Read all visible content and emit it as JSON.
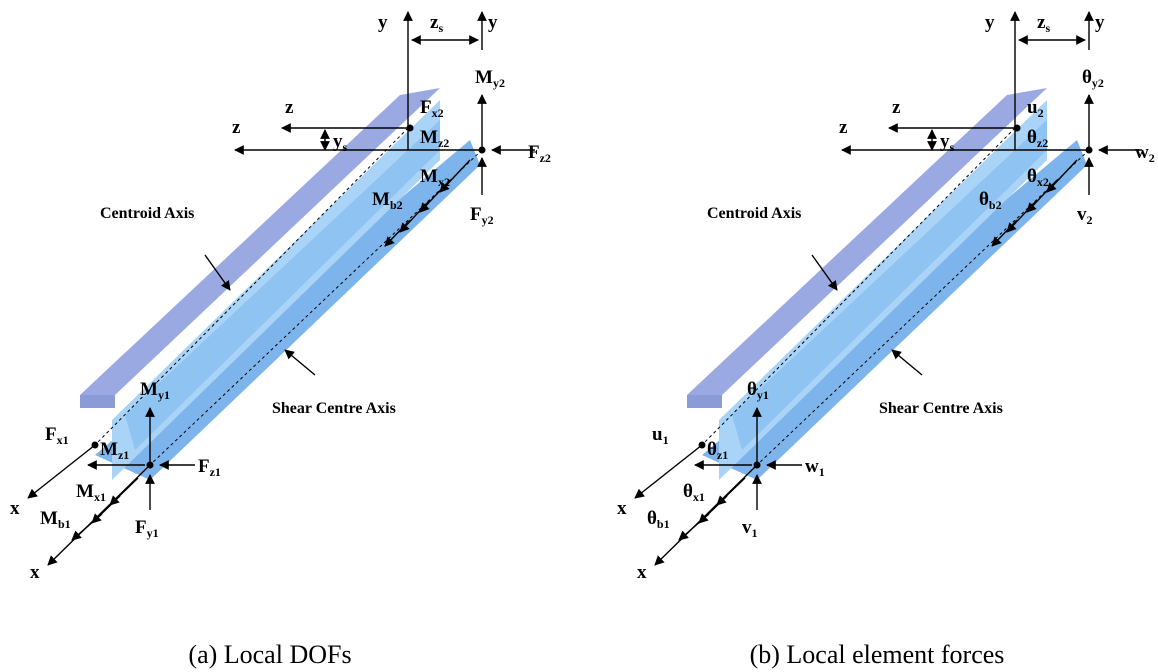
{
  "panels": [
    {
      "caption": "(a) Local DOFs",
      "centroid_axis": "Centroid Axis",
      "shear_centre_axis": "Shear Centre Axis",
      "labels": [
        {
          "text": "y"
        },
        {
          "text": "y"
        },
        {
          "text": "z",
          "sub": "s"
        },
        {
          "text": "F",
          "sub": "x2"
        },
        {
          "text": "M",
          "sub": "y2"
        },
        {
          "text": "z"
        },
        {
          "text": "z"
        },
        {
          "text": "y",
          "sub": "s"
        },
        {
          "text": "M",
          "sub": "z2"
        },
        {
          "text": "F",
          "sub": "z2"
        },
        {
          "text": "M",
          "sub": "x2"
        },
        {
          "text": "M",
          "sub": "b2"
        },
        {
          "text": "F",
          "sub": "y2"
        },
        {
          "text": "F",
          "sub": "x1"
        },
        {
          "text": "M",
          "sub": "y1"
        },
        {
          "text": "M",
          "sub": "z1"
        },
        {
          "text": "F",
          "sub": "z1"
        },
        {
          "text": "M",
          "sub": "x1"
        },
        {
          "text": "x"
        },
        {
          "text": "M",
          "sub": "b1"
        },
        {
          "text": "F",
          "sub": "y1"
        },
        {
          "text": "x"
        }
      ]
    },
    {
      "caption": "(b) Local element forces",
      "centroid_axis": "Centroid Axis",
      "shear_centre_axis": "Shear Centre Axis",
      "labels": [
        {
          "text": "y"
        },
        {
          "text": "y"
        },
        {
          "text": "z",
          "sub": "s"
        },
        {
          "text": "u",
          "sub": "2"
        },
        {
          "text": "θ",
          "sub": "y2"
        },
        {
          "text": "z"
        },
        {
          "text": "z"
        },
        {
          "text": "y",
          "sub": "s"
        },
        {
          "text": "θ",
          "sub": "z2"
        },
        {
          "text": "w",
          "sub": "2"
        },
        {
          "text": "θ",
          "sub": "x2"
        },
        {
          "text": "θ",
          "sub": "b2"
        },
        {
          "text": "v",
          "sub": "2"
        },
        {
          "text": "u",
          "sub": "1"
        },
        {
          "text": "θ",
          "sub": "y1"
        },
        {
          "text": "θ",
          "sub": "z1"
        },
        {
          "text": "w",
          "sub": "1"
        },
        {
          "text": "θ",
          "sub": "x1"
        },
        {
          "text": "x"
        },
        {
          "text": "θ",
          "sub": "b1"
        },
        {
          "text": "v",
          "sub": "1"
        },
        {
          "text": "x"
        }
      ]
    }
  ]
}
